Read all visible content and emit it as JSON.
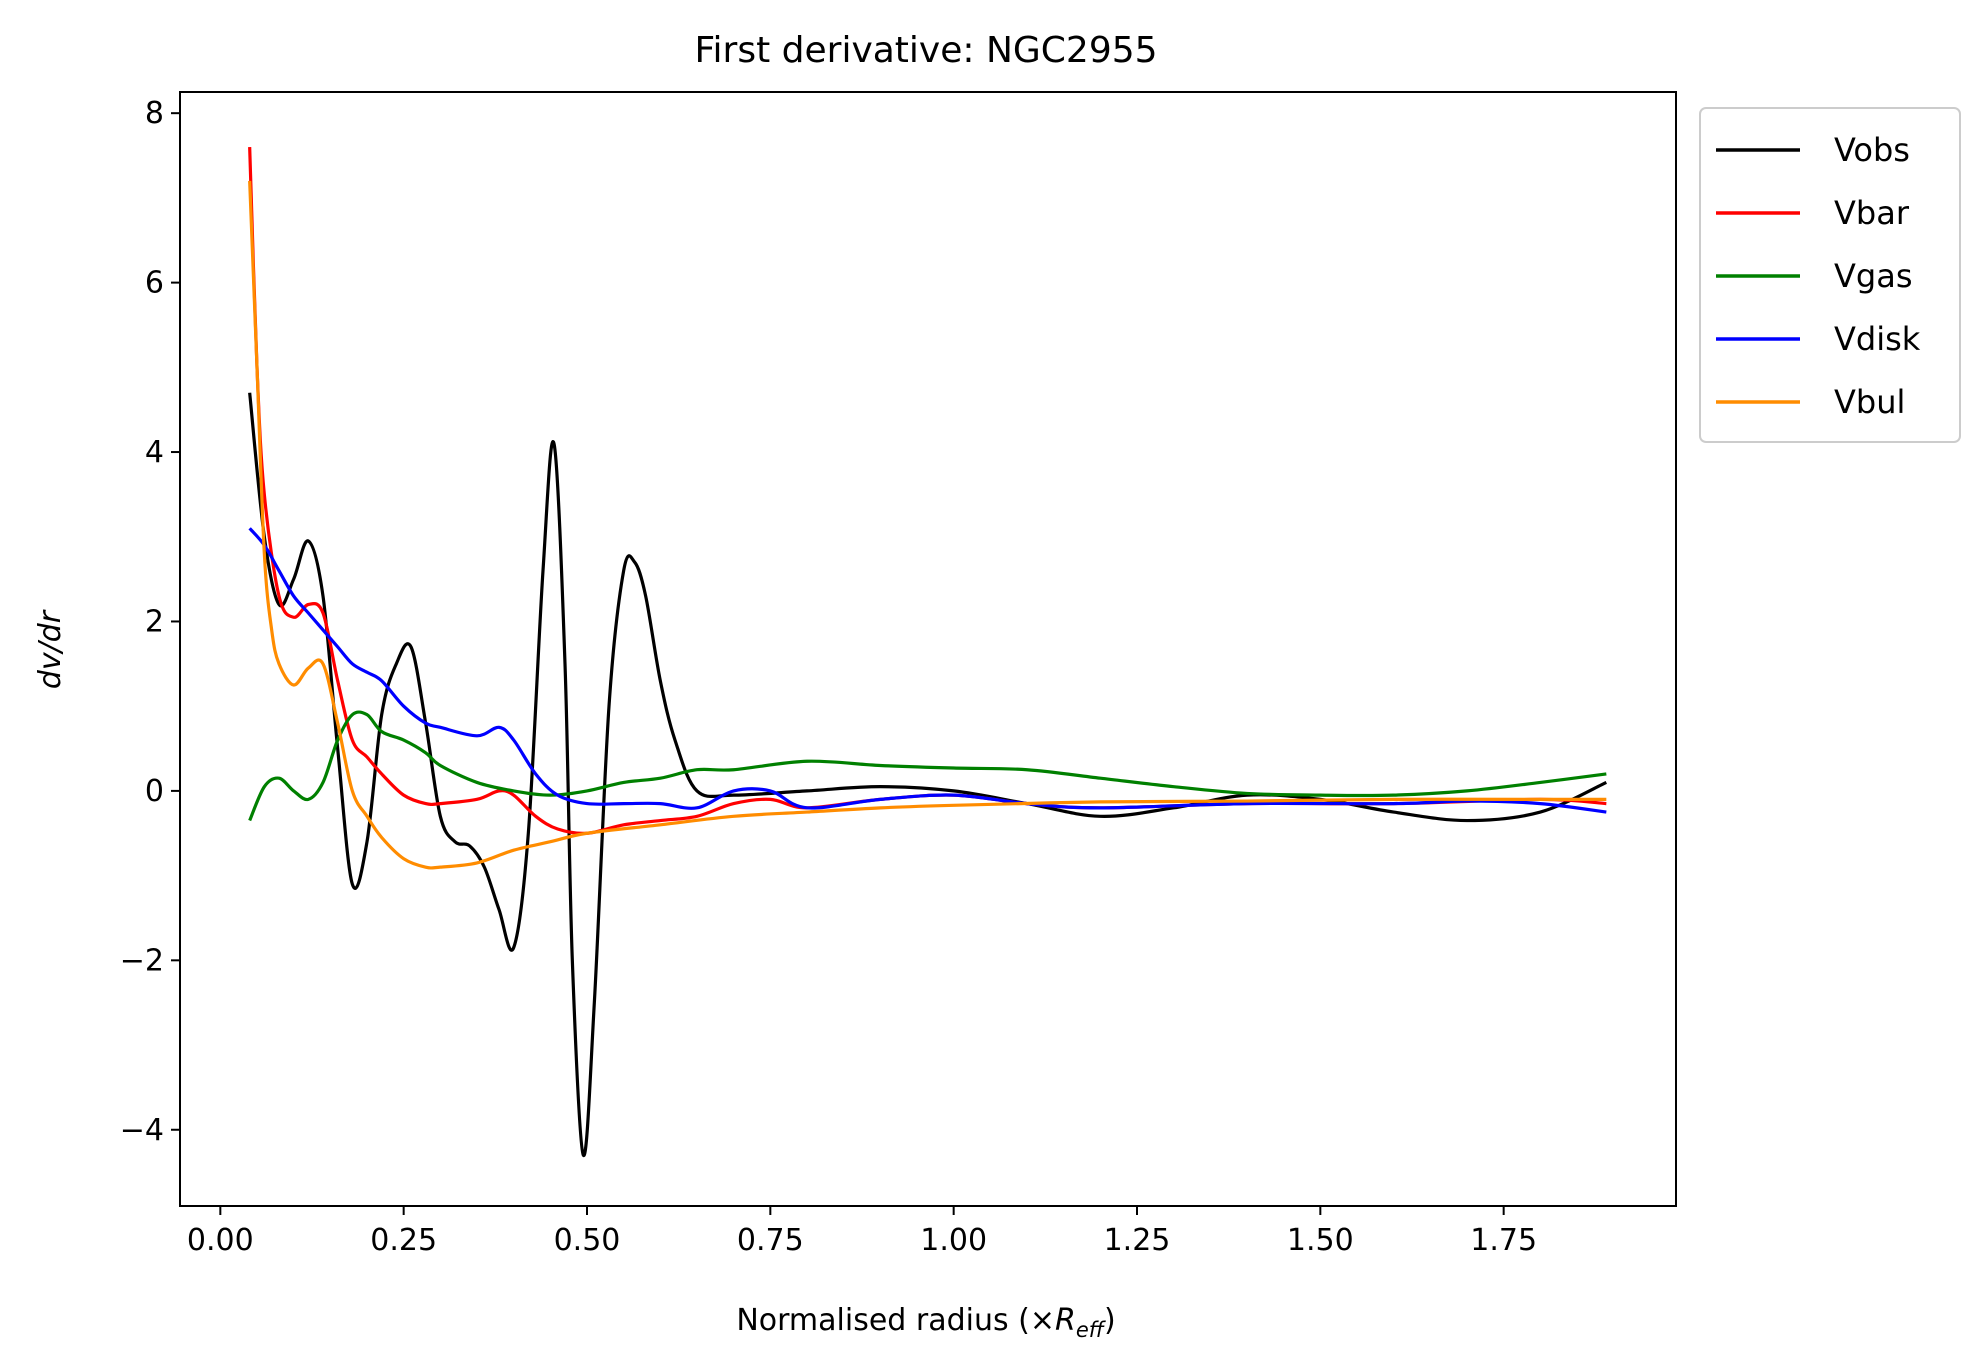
{
  "chart_data": {
    "type": "line",
    "title": "First derivative: NGC2955",
    "xlabel": "Normalised radius (×R_eff)",
    "xlabel_parts": {
      "prefix": "Normalised radius (×",
      "symbol": "R",
      "subscript": "eff",
      "suffix": ")"
    },
    "ylabel": "dv/dr",
    "xlim": [
      -0.055,
      1.985
    ],
    "ylim": [
      -4.9,
      8.25
    ],
    "xticks": [
      0.0,
      0.25,
      0.5,
      0.75,
      1.0,
      1.25,
      1.5,
      1.75
    ],
    "xtick_labels": [
      "0.00",
      "0.25",
      "0.50",
      "0.75",
      "1.00",
      "1.25",
      "1.50",
      "1.75"
    ],
    "yticks": [
      -4,
      -2,
      0,
      2,
      4,
      6,
      8
    ],
    "ytick_labels": [
      "−4",
      "−2",
      "0",
      "2",
      "4",
      "6",
      "8"
    ],
    "grid": false,
    "legend_position": "outside-top-right",
    "series": [
      {
        "name": "Vobs",
        "color": "#000000",
        "x": [
          0.04,
          0.06,
          0.08,
          0.1,
          0.12,
          0.14,
          0.16,
          0.18,
          0.2,
          0.22,
          0.24,
          0.26,
          0.28,
          0.3,
          0.32,
          0.34,
          0.36,
          0.38,
          0.4,
          0.42,
          0.44,
          0.455,
          0.47,
          0.48,
          0.495,
          0.51,
          0.53,
          0.55,
          0.565,
          0.58,
          0.6,
          0.62,
          0.65,
          0.7,
          0.8,
          0.9,
          1.0,
          1.1,
          1.2,
          1.3,
          1.4,
          1.5,
          1.6,
          1.7,
          1.8,
          1.89
        ],
        "y": [
          4.7,
          3.0,
          2.2,
          2.5,
          2.95,
          2.3,
          0.5,
          -1.1,
          -0.6,
          0.9,
          1.5,
          1.7,
          0.8,
          -0.3,
          -0.6,
          -0.65,
          -0.9,
          -1.4,
          -1.85,
          -0.5,
          2.6,
          4.1,
          1.5,
          -2.0,
          -4.3,
          -2.5,
          1.0,
          2.6,
          2.7,
          2.3,
          1.3,
          0.6,
          0.0,
          -0.05,
          0.0,
          0.05,
          0.0,
          -0.15,
          -0.3,
          -0.2,
          -0.05,
          -0.1,
          -0.25,
          -0.35,
          -0.25,
          0.1
        ]
      },
      {
        "name": "Vbar",
        "color": "#ff0000",
        "x": [
          0.04,
          0.05,
          0.06,
          0.08,
          0.1,
          0.12,
          0.14,
          0.16,
          0.18,
          0.2,
          0.22,
          0.25,
          0.28,
          0.3,
          0.35,
          0.38,
          0.4,
          0.43,
          0.46,
          0.5,
          0.55,
          0.6,
          0.65,
          0.7,
          0.75,
          0.8,
          0.9,
          1.0,
          1.1,
          1.2,
          1.4,
          1.6,
          1.8,
          1.89
        ],
        "y": [
          7.6,
          5.0,
          3.5,
          2.3,
          2.05,
          2.2,
          2.1,
          1.3,
          0.6,
          0.4,
          0.2,
          -0.05,
          -0.15,
          -0.15,
          -0.1,
          0.0,
          -0.05,
          -0.3,
          -0.45,
          -0.5,
          -0.4,
          -0.35,
          -0.3,
          -0.15,
          -0.1,
          -0.2,
          -0.1,
          -0.05,
          -0.15,
          -0.2,
          -0.15,
          -0.15,
          -0.1,
          -0.15
        ]
      },
      {
        "name": "Vgas",
        "color": "#008000",
        "x": [
          0.04,
          0.06,
          0.08,
          0.1,
          0.12,
          0.14,
          0.16,
          0.18,
          0.2,
          0.22,
          0.25,
          0.28,
          0.3,
          0.35,
          0.4,
          0.45,
          0.5,
          0.55,
          0.6,
          0.65,
          0.7,
          0.8,
          0.9,
          1.0,
          1.1,
          1.2,
          1.3,
          1.4,
          1.5,
          1.6,
          1.7,
          1.8,
          1.89
        ],
        "y": [
          -0.35,
          0.05,
          0.15,
          0.0,
          -0.1,
          0.1,
          0.6,
          0.9,
          0.9,
          0.7,
          0.6,
          0.45,
          0.3,
          0.1,
          0.0,
          -0.05,
          0.0,
          0.1,
          0.15,
          0.25,
          0.25,
          0.35,
          0.3,
          0.27,
          0.25,
          0.15,
          0.05,
          -0.03,
          -0.05,
          -0.05,
          0.0,
          0.1,
          0.2
        ]
      },
      {
        "name": "Vdisk",
        "color": "#0000ff",
        "x": [
          0.04,
          0.06,
          0.08,
          0.1,
          0.12,
          0.14,
          0.16,
          0.18,
          0.2,
          0.22,
          0.25,
          0.28,
          0.3,
          0.35,
          0.38,
          0.4,
          0.43,
          0.46,
          0.5,
          0.55,
          0.6,
          0.65,
          0.7,
          0.75,
          0.8,
          0.9,
          1.0,
          1.1,
          1.2,
          1.4,
          1.6,
          1.7,
          1.8,
          1.89
        ],
        "y": [
          3.1,
          2.9,
          2.6,
          2.3,
          2.1,
          1.9,
          1.7,
          1.5,
          1.4,
          1.3,
          1.0,
          0.8,
          0.75,
          0.65,
          0.75,
          0.6,
          0.2,
          -0.05,
          -0.15,
          -0.15,
          -0.15,
          -0.2,
          0.0,
          0.0,
          -0.2,
          -0.1,
          -0.05,
          -0.15,
          -0.2,
          -0.15,
          -0.15,
          -0.12,
          -0.15,
          -0.25
        ]
      },
      {
        "name": "Vbul",
        "color": "#ff8c00",
        "x": [
          0.04,
          0.05,
          0.06,
          0.07,
          0.08,
          0.1,
          0.12,
          0.14,
          0.16,
          0.18,
          0.2,
          0.22,
          0.25,
          0.28,
          0.3,
          0.35,
          0.4,
          0.45,
          0.5,
          0.6,
          0.7,
          0.8,
          0.9,
          1.0,
          1.2,
          1.4,
          1.6,
          1.8,
          1.89
        ],
        "y": [
          7.2,
          5.0,
          2.8,
          1.9,
          1.5,
          1.25,
          1.45,
          1.5,
          0.8,
          0.0,
          -0.3,
          -0.55,
          -0.8,
          -0.9,
          -0.9,
          -0.85,
          -0.7,
          -0.6,
          -0.5,
          -0.4,
          -0.3,
          -0.25,
          -0.2,
          -0.17,
          -0.13,
          -0.12,
          -0.1,
          -0.1,
          -0.1
        ]
      }
    ]
  }
}
